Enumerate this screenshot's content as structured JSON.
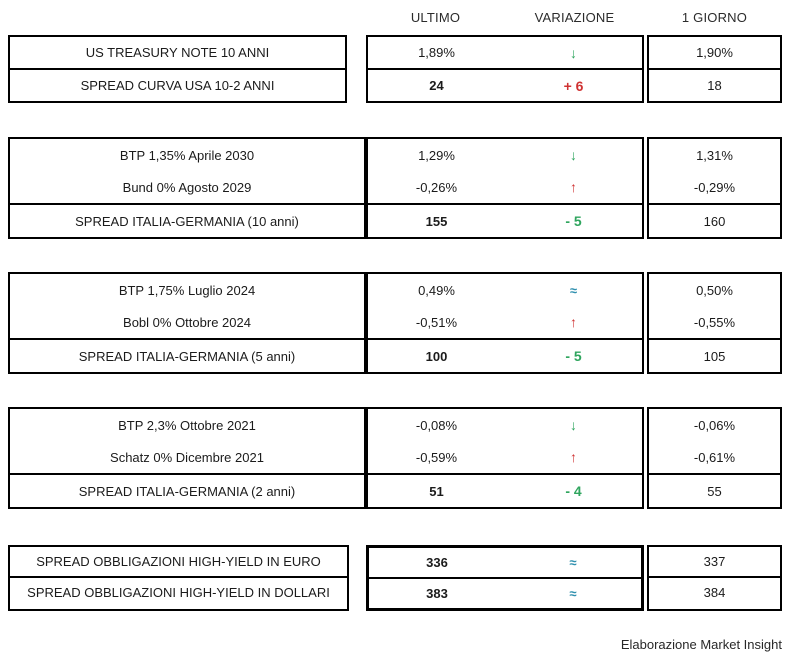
{
  "header": {
    "ultimo": "ULTIMO",
    "variazione": "VARIAZIONE",
    "giorno": "1 GIORNO"
  },
  "colors": {
    "positive_green": "#2fa55e",
    "negative_red": "#cf3232",
    "neutral_teal": "#2e8fae",
    "border_black": "#000000",
    "text": "#1b1b1b"
  },
  "groups": [
    {
      "name": "us-treasury",
      "rows": [
        {
          "label": "US TREASURY NOTE 10 ANNI",
          "ultimo": "1,89%",
          "variazione": "↓",
          "trend": "down",
          "giorno": "1,90%"
        },
        {
          "label": "SPREAD CURVA USA 10-2 ANNI",
          "ultimo": "24",
          "variazione": "+ 6",
          "trend": "up",
          "giorno": "18"
        }
      ]
    },
    {
      "name": "italia-germania-10-anni",
      "rows": [
        {
          "label": "BTP 1,35% Aprile 2030",
          "ultimo": "1,29%",
          "variazione": "↓",
          "trend": "down",
          "giorno": "1,31%"
        },
        {
          "label": "Bund 0% Agosto 2029",
          "ultimo": "-0,26%",
          "variazione": "↑",
          "trend": "up",
          "giorno": "-0,29%"
        },
        {
          "label": "SPREAD ITALIA-GERMANIA (10 anni)",
          "ultimo": "155",
          "variazione": "- 5",
          "trend": "down",
          "giorno": "160"
        }
      ]
    },
    {
      "name": "italia-germania-5-anni",
      "rows": [
        {
          "label": "BTP 1,75% Luglio 2024",
          "ultimo": "0,49%",
          "variazione": "≈",
          "trend": "flat",
          "giorno": "0,50%"
        },
        {
          "label": "Bobl 0% Ottobre 2024",
          "ultimo": "-0,51%",
          "variazione": "↑",
          "trend": "up",
          "giorno": "-0,55%"
        },
        {
          "label": "SPREAD ITALIA-GERMANIA (5 anni)",
          "ultimo": "100",
          "variazione": "- 5",
          "trend": "down",
          "giorno": "105"
        }
      ]
    },
    {
      "name": "italia-germania-2-anni",
      "rows": [
        {
          "label": "BTP 2,3% Ottobre 2021",
          "ultimo": "-0,08%",
          "variazione": "↓",
          "trend": "down",
          "giorno": "-0,06%"
        },
        {
          "label": "Schatz 0% Dicembre 2021",
          "ultimo": "-0,59%",
          "variazione": "↑",
          "trend": "up",
          "giorno": "-0,61%"
        },
        {
          "label": "SPREAD ITALIA-GERMANIA (2 anni)",
          "ultimo": "51",
          "variazione": "- 4",
          "trend": "down",
          "giorno": "55"
        }
      ]
    },
    {
      "name": "high-yield",
      "rows": [
        {
          "label": "SPREAD OBBLIGAZIONI HIGH-YIELD IN EURO",
          "ultimo": "336",
          "variazione": "≈",
          "trend": "flat",
          "giorno": "337"
        },
        {
          "label": "SPREAD OBBLIGAZIONI HIGH-YIELD IN DOLLARI",
          "ultimo": "383",
          "variazione": "≈",
          "trend": "flat",
          "giorno": "384"
        }
      ]
    }
  ],
  "footer": {
    "credit": "Elaborazione Market Insight"
  }
}
